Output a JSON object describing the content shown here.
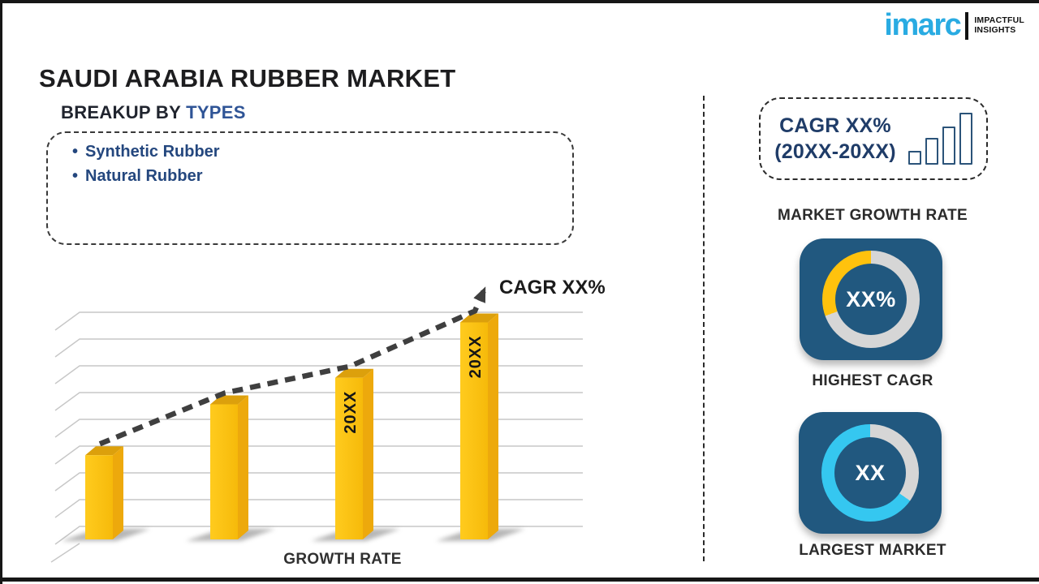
{
  "header": {
    "title": "SAUDI ARABIA RUBBER MARKET"
  },
  "logo": {
    "brand": "imarc",
    "tagline1": "IMPACTFUL",
    "tagline2": "INSIGHTS",
    "brand_color": "#29ABE2"
  },
  "breakup": {
    "heading_prefix": "BREAKUP BY ",
    "heading_highlight": "TYPES",
    "items": [
      "Synthetic Rubber",
      "Natural Rubber"
    ]
  },
  "chart_data": {
    "type": "bar",
    "categories": [
      "",
      "",
      "20XX",
      "20XX"
    ],
    "values": [
      38,
      61,
      73,
      98
    ],
    "ylim": [
      0,
      100
    ],
    "grid": true,
    "xlabel": "GROWTH RATE",
    "annotations": [
      "CAGR XX%"
    ],
    "bar_color": "#FDC113",
    "trendline": {
      "style": "dashed-arrow",
      "color": "#3F3F3F"
    }
  },
  "right_panel": {
    "cagr_line1": "CAGR XX%",
    "cagr_line2": "(20XX-20XX)",
    "growth_icon_bars": [
      13,
      29,
      43,
      60
    ],
    "market_growth_label": "MARKET GROWTH RATE",
    "donuts": [
      {
        "value": "XX%",
        "label": "HIGHEST CAGR",
        "card_color": "#21587F",
        "base_color": "#D6D6D6",
        "seg_color": "#FFC20D",
        "seg_from_deg": 250,
        "seg_to_deg": 360
      },
      {
        "value": "XX",
        "label": "LARGEST MARKET",
        "card_color": "#21587F",
        "base_color": "#35C7F0",
        "seg_color": "#D6D6D6",
        "seg_from_deg": 0,
        "seg_to_deg": 125
      }
    ]
  },
  "colors": {
    "navy_text": "#24477E",
    "heading_blue": "#2F5496",
    "bar_yellow": "#FDC113",
    "donut_yellow": "#FFC20D",
    "donut_cyan": "#35C7F0",
    "card_blue": "#21587F",
    "ring_gray": "#D6D6D6"
  }
}
